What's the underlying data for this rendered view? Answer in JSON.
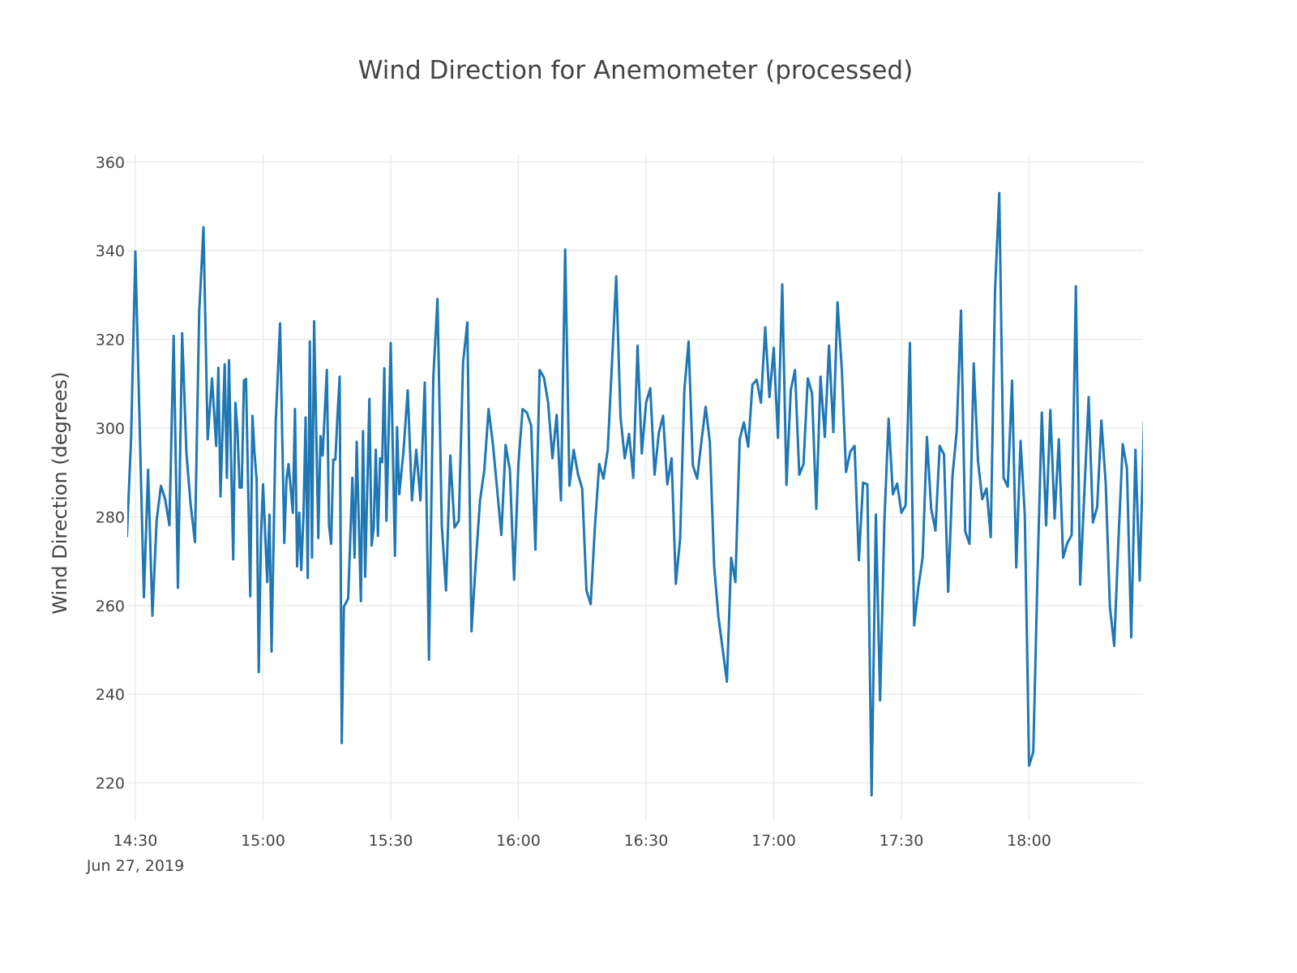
{
  "chart_data": {
    "type": "line",
    "title": "Wind Direction for Anemometer (processed)",
    "xlabel": "",
    "ylabel": "Wind Direction (degrees)",
    "date": "Jun 27, 2019",
    "xlim": [
      "14:28:06",
      "18:26:46"
    ],
    "ylim": [
      211.5,
      361.8
    ],
    "grid": true,
    "line_color": "#1f77b4",
    "x_ticks": [
      {
        "time": "14:30:00",
        "label": "14:30"
      },
      {
        "time": "15:00:00",
        "label": "15:00"
      },
      {
        "time": "15:30:00",
        "label": "15:30"
      },
      {
        "time": "16:00:00",
        "label": "16:00"
      },
      {
        "time": "16:30:00",
        "label": "16:30"
      },
      {
        "time": "17:00:00",
        "label": "17:00"
      },
      {
        "time": "17:30:00",
        "label": "17:30"
      },
      {
        "time": "18:00:00",
        "label": "18:00"
      }
    ],
    "y_ticks": [
      220,
      240,
      260,
      280,
      300,
      320,
      340,
      360
    ],
    "points": [
      [
        "14:28:00",
        275.4
      ],
      [
        "14:29:00",
        297.5
      ],
      [
        "14:30:00",
        339.8
      ],
      [
        "14:32:00",
        261.9
      ],
      [
        "14:33:00",
        290.6
      ],
      [
        "14:34:00",
        257.7
      ],
      [
        "14:35:00",
        279.1
      ],
      [
        "14:36:00",
        287.0
      ],
      [
        "14:37:00",
        284.0
      ],
      [
        "14:38:00",
        278.1
      ],
      [
        "14:39:00",
        320.8
      ],
      [
        "14:40:00",
        264.0
      ],
      [
        "14:41:00",
        321.4
      ],
      [
        "14:42:00",
        294.3
      ],
      [
        "14:43:00",
        282.7
      ],
      [
        "14:44:00",
        274.3
      ],
      [
        "14:45:00",
        326.0
      ],
      [
        "14:46:00",
        345.3
      ],
      [
        "14:47:00",
        297.5
      ],
      [
        "14:48:00",
        311.2
      ],
      [
        "14:49:00",
        296.0
      ],
      [
        "14:49:30",
        313.6
      ],
      [
        "14:50:00",
        284.6
      ],
      [
        "14:51:00",
        314.4
      ],
      [
        "14:51:30",
        288.8
      ],
      [
        "14:52:00",
        315.3
      ],
      [
        "14:53:00",
        270.4
      ],
      [
        "14:53:30",
        305.7
      ],
      [
        "14:54:00",
        299.3
      ],
      [
        "14:54:30",
        286.6
      ],
      [
        "14:55:00",
        286.6
      ],
      [
        "14:55:30",
        310.7
      ],
      [
        "14:56:00",
        311.1
      ],
      [
        "14:57:00",
        262.1
      ],
      [
        "14:57:30",
        302.8
      ],
      [
        "14:58:00",
        294.3
      ],
      [
        "14:58:30",
        288.3
      ],
      [
        "14:59:00",
        245.0
      ],
      [
        "14:59:30",
        275.4
      ],
      [
        "15:00:00",
        287.3
      ],
      [
        "15:01:00",
        265.3
      ],
      [
        "15:01:30",
        280.5
      ],
      [
        "15:02:00",
        249.6
      ],
      [
        "15:03:00",
        301.7
      ],
      [
        "15:04:00",
        323.6
      ],
      [
        "15:04:30",
        298.9
      ],
      [
        "15:05:00",
        274.1
      ],
      [
        "15:05:30",
        288.4
      ],
      [
        "15:06:00",
        291.9
      ],
      [
        "15:07:00",
        280.9
      ],
      [
        "15:07:30",
        304.3
      ],
      [
        "15:08:00",
        268.8
      ],
      [
        "15:08:30",
        280.9
      ],
      [
        "15:09:00",
        268.0
      ],
      [
        "15:09:30",
        280.5
      ],
      [
        "15:10:00",
        302.4
      ],
      [
        "15:10:30",
        266.2
      ],
      [
        "15:11:00",
        319.5
      ],
      [
        "15:11:30",
        270.8
      ],
      [
        "15:12:00",
        324.1
      ],
      [
        "15:13:00",
        275.2
      ],
      [
        "15:13:30",
        298.2
      ],
      [
        "15:14:00",
        293.8
      ],
      [
        "15:15:00",
        313.1
      ],
      [
        "15:15:30",
        278.1
      ],
      [
        "15:16:00",
        273.9
      ],
      [
        "15:16:30",
        292.9
      ],
      [
        "15:17:00",
        292.9
      ],
      [
        "15:17:30",
        302.6
      ],
      [
        "15:18:00",
        311.6
      ],
      [
        "15:18:30",
        229.0
      ],
      [
        "15:19:00",
        259.7
      ],
      [
        "15:20:00",
        261.6
      ],
      [
        "15:21:00",
        288.8
      ],
      [
        "15:21:30",
        270.8
      ],
      [
        "15:22:00",
        296.9
      ],
      [
        "15:23:00",
        261.0
      ],
      [
        "15:23:30",
        299.3
      ],
      [
        "15:24:00",
        266.5
      ],
      [
        "15:25:00",
        306.6
      ],
      [
        "15:25:30",
        273.5
      ],
      [
        "15:26:00",
        277.6
      ],
      [
        "15:26:30",
        295.1
      ],
      [
        "15:27:00",
        275.7
      ],
      [
        "15:27:30",
        293.2
      ],
      [
        "15:28:00",
        292.3
      ],
      [
        "15:28:30",
        313.5
      ],
      [
        "15:29:00",
        279.1
      ],
      [
        "15:30:00",
        319.2
      ],
      [
        "15:31:00",
        271.2
      ],
      [
        "15:31:30",
        300.2
      ],
      [
        "15:32:00",
        285.1
      ],
      [
        "15:33:00",
        294.7
      ],
      [
        "15:34:00",
        308.5
      ],
      [
        "15:35:00",
        283.7
      ],
      [
        "15:36:00",
        295.1
      ],
      [
        "15:37:00",
        283.7
      ],
      [
        "15:38:00",
        310.3
      ],
      [
        "15:39:00",
        247.8
      ],
      [
        "15:40:00",
        311.2
      ],
      [
        "15:41:00",
        329.1
      ],
      [
        "15:42:00",
        278.1
      ],
      [
        "15:43:00",
        263.4
      ],
      [
        "15:44:00",
        293.8
      ],
      [
        "15:45:00",
        277.6
      ],
      [
        "15:46:00",
        279.1
      ],
      [
        "15:47:00",
        314.6
      ],
      [
        "15:48:00",
        323.8
      ],
      [
        "15:49:00",
        254.2
      ],
      [
        "15:50:00",
        269.9
      ],
      [
        "15:51:00",
        283.7
      ],
      [
        "15:52:00",
        290.6
      ],
      [
        "15:53:00",
        304.3
      ],
      [
        "15:54:00",
        296.5
      ],
      [
        "15:55:00",
        286.4
      ],
      [
        "15:56:00",
        275.9
      ],
      [
        "15:57:00",
        296.2
      ],
      [
        "15:58:00",
        290.6
      ],
      [
        "15:59:00",
        265.8
      ],
      [
        "16:00:00",
        291.9
      ],
      [
        "16:01:00",
        304.3
      ],
      [
        "16:02:00",
        303.5
      ],
      [
        "16:03:00",
        300.6
      ],
      [
        "16:04:00",
        272.6
      ],
      [
        "16:05:00",
        313.1
      ],
      [
        "16:06:00",
        311.4
      ],
      [
        "16:07:00",
        305.7
      ],
      [
        "16:08:00",
        293.2
      ],
      [
        "16:09:00",
        303.0
      ],
      [
        "16:10:00",
        283.7
      ],
      [
        "16:11:00",
        340.3
      ],
      [
        "16:12:00",
        287.0
      ],
      [
        "16:13:00",
        295.1
      ],
      [
        "16:14:00",
        289.6
      ],
      [
        "16:15:00",
        286.4
      ],
      [
        "16:16:00",
        263.4
      ],
      [
        "16:17:00",
        260.3
      ],
      [
        "16:18:00",
        278.1
      ],
      [
        "16:19:00",
        291.9
      ],
      [
        "16:20:00",
        288.6
      ],
      [
        "16:21:00",
        295.1
      ],
      [
        "16:23:00",
        334.2
      ],
      [
        "16:24:00",
        302.4
      ],
      [
        "16:25:00",
        293.2
      ],
      [
        "16:26:00",
        298.7
      ],
      [
        "16:27:00",
        288.8
      ],
      [
        "16:28:00",
        318.6
      ],
      [
        "16:29:00",
        294.3
      ],
      [
        "16:30:00",
        305.7
      ],
      [
        "16:31:00",
        309.0
      ],
      [
        "16:32:00",
        289.5
      ],
      [
        "16:33:00",
        298.9
      ],
      [
        "16:34:00",
        302.8
      ],
      [
        "16:35:00",
        287.3
      ],
      [
        "16:36:00",
        293.2
      ],
      [
        "16:37:00",
        264.9
      ],
      [
        "16:38:00",
        275.0
      ],
      [
        "16:39:00",
        308.5
      ],
      [
        "16:40:00",
        319.5
      ],
      [
        "16:41:00",
        291.6
      ],
      [
        "16:42:00",
        288.6
      ],
      [
        "16:43:00",
        296.9
      ],
      [
        "16:44:00",
        304.8
      ],
      [
        "16:45:00",
        296.9
      ],
      [
        "16:46:00",
        268.9
      ],
      [
        "16:47:00",
        257.5
      ],
      [
        "16:49:00",
        242.8
      ],
      [
        "16:50:00",
        270.8
      ],
      [
        "16:51:00",
        265.3
      ],
      [
        "16:52:00",
        297.5
      ],
      [
        "16:53:00",
        301.3
      ],
      [
        "16:54:00",
        295.8
      ],
      [
        "16:55:00",
        309.8
      ],
      [
        "16:56:00",
        310.9
      ],
      [
        "16:57:00",
        305.7
      ],
      [
        "16:58:00",
        322.7
      ],
      [
        "16:59:00",
        307.0
      ],
      [
        "17:00:00",
        318.1
      ],
      [
        "17:01:00",
        297.8
      ],
      [
        "17:02:00",
        332.4
      ],
      [
        "17:03:00",
        287.2
      ],
      [
        "17:04:00",
        308.5
      ],
      [
        "17:05:00",
        313.1
      ],
      [
        "17:06:00",
        289.5
      ],
      [
        "17:07:00",
        291.9
      ],
      [
        "17:08:00",
        311.2
      ],
      [
        "17:09:00",
        307.9
      ],
      [
        "17:10:00",
        281.8
      ],
      [
        "17:11:00",
        311.6
      ],
      [
        "17:12:00",
        298.0
      ],
      [
        "17:13:00",
        318.6
      ],
      [
        "17:14:00",
        299.1
      ],
      [
        "17:15:00",
        328.4
      ],
      [
        "17:16:00",
        313.1
      ],
      [
        "17:17:00",
        290.1
      ],
      [
        "17:18:00",
        294.7
      ],
      [
        "17:19:00",
        296.0
      ],
      [
        "17:20:00",
        270.2
      ],
      [
        "17:21:00",
        287.7
      ],
      [
        "17:22:00",
        287.3
      ],
      [
        "17:23:00",
        217.2
      ],
      [
        "17:24:00",
        280.5
      ],
      [
        "17:25:00",
        238.6
      ],
      [
        "17:26:00",
        279.1
      ],
      [
        "17:27:00",
        302.1
      ],
      [
        "17:28:00",
        285.1
      ],
      [
        "17:29:00",
        287.5
      ],
      [
        "17:30:00",
        280.9
      ],
      [
        "17:31:00",
        282.6
      ],
      [
        "17:32:00",
        319.2
      ],
      [
        "17:33:00",
        255.5
      ],
      [
        "17:34:00",
        264.3
      ],
      [
        "17:35:00",
        270.8
      ],
      [
        "17:36:00",
        298.0
      ],
      [
        "17:37:00",
        281.8
      ],
      [
        "17:38:00",
        276.9
      ],
      [
        "17:39:00",
        296.0
      ],
      [
        "17:40:00",
        294.1
      ],
      [
        "17:41:00",
        263.1
      ],
      [
        "17:42:00",
        289.2
      ],
      [
        "17:43:00",
        299.3
      ],
      [
        "17:44:00",
        326.5
      ],
      [
        "17:45:00",
        276.7
      ],
      [
        "17:46:00",
        273.9
      ],
      [
        "17:47:00",
        314.6
      ],
      [
        "17:48:00",
        292.5
      ],
      [
        "17:49:00",
        284.0
      ],
      [
        "17:50:00",
        286.4
      ],
      [
        "17:51:00",
        275.4
      ],
      [
        "17:52:00",
        331.1
      ],
      [
        "17:53:00",
        353.0
      ],
      [
        "17:54:00",
        288.8
      ],
      [
        "17:55:00",
        286.8
      ],
      [
        "17:56:00",
        310.7
      ],
      [
        "17:57:00",
        268.6
      ],
      [
        "17:58:00",
        297.1
      ],
      [
        "17:59:00",
        280.5
      ],
      [
        "18:00:00",
        223.9
      ],
      [
        "18:01:00",
        227.0
      ],
      [
        "18:02:00",
        268.0
      ],
      [
        "18:03:00",
        303.5
      ],
      [
        "18:04:00",
        278.1
      ],
      [
        "18:05:00",
        304.1
      ],
      [
        "18:06:00",
        279.6
      ],
      [
        "18:07:00",
        297.5
      ],
      [
        "18:08:00",
        270.8
      ],
      [
        "18:09:00",
        274.1
      ],
      [
        "18:10:00",
        275.9
      ],
      [
        "18:11:00",
        332.0
      ],
      [
        "18:12:00",
        264.7
      ],
      [
        "18:13:00",
        285.5
      ],
      [
        "18:14:00",
        307.0
      ],
      [
        "18:15:00",
        278.7
      ],
      [
        "18:16:00",
        282.2
      ],
      [
        "18:17:00",
        301.7
      ],
      [
        "18:18:00",
        287.7
      ],
      [
        "18:19:00",
        259.7
      ],
      [
        "18:20:00",
        250.9
      ],
      [
        "18:21:00",
        274.5
      ],
      [
        "18:22:00",
        296.4
      ],
      [
        "18:23:00",
        291.0
      ],
      [
        "18:24:00",
        252.8
      ],
      [
        "18:25:00",
        295.1
      ],
      [
        "18:26:00",
        265.6
      ],
      [
        "18:27:00",
        301.5
      ]
    ]
  }
}
